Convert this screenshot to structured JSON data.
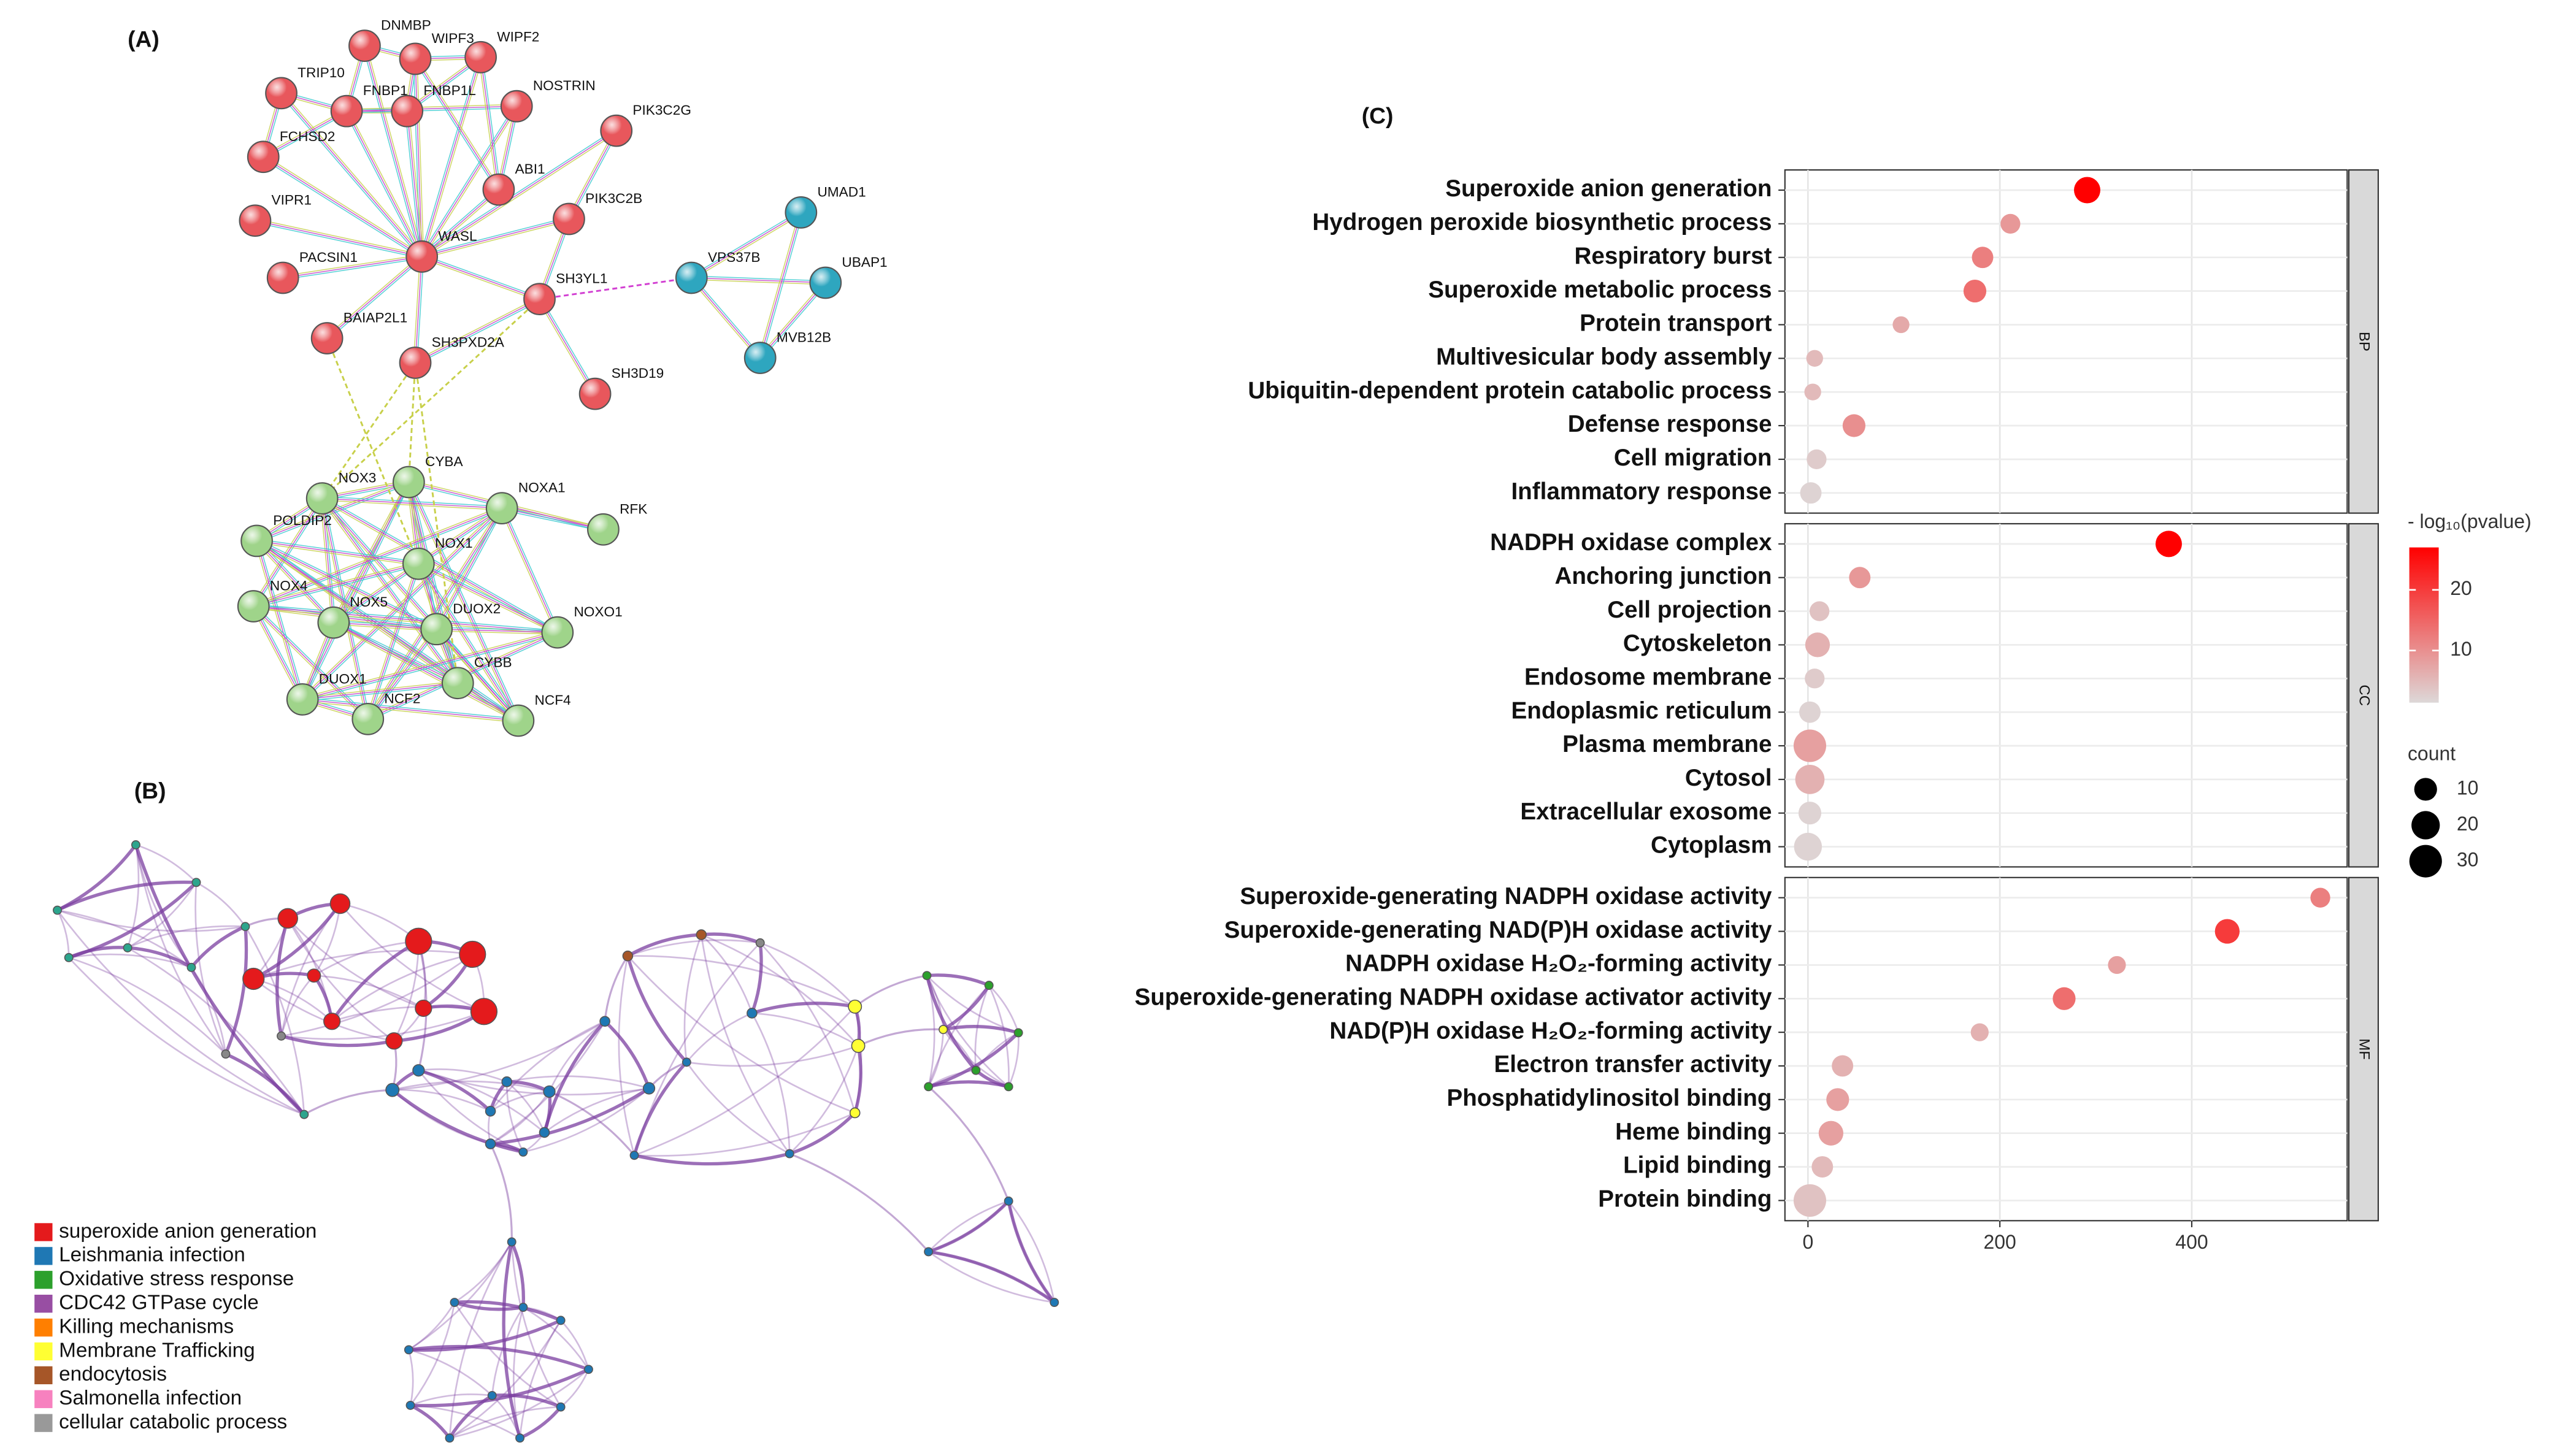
{
  "panel_labels": {
    "a": "(A)",
    "b": "(B)",
    "c": "(C)"
  },
  "network": {
    "nodes": [
      {
        "label": "DNMBP",
        "color": "#e8575c"
      },
      {
        "label": "WIPF3",
        "color": "#e8575c"
      },
      {
        "label": "WIPF2",
        "color": "#e8575c"
      },
      {
        "label": "TRIP10",
        "color": "#e8575c"
      },
      {
        "label": "FNBP1",
        "color": "#e8575c"
      },
      {
        "label": "FNBP1L",
        "color": "#e8575c"
      },
      {
        "label": "NOSTRIN",
        "color": "#e8575c"
      },
      {
        "label": "PIK3C2G",
        "color": "#e8575c"
      },
      {
        "label": "FCHSD2",
        "color": "#e8575c"
      },
      {
        "label": "ABI1",
        "color": "#e8575c"
      },
      {
        "label": "PIK3C2B",
        "color": "#e8575c"
      },
      {
        "label": "VIPR1",
        "color": "#e8575c"
      },
      {
        "label": "WASL",
        "color": "#e8575c"
      },
      {
        "label": "PACSIN1",
        "color": "#e8575c"
      },
      {
        "label": "SH3YL1",
        "color": "#e8575c"
      },
      {
        "label": "BAIAP2L1",
        "color": "#e8575c"
      },
      {
        "label": "SH3PXD2A",
        "color": "#e8575c"
      },
      {
        "label": "SH3D19",
        "color": "#e8575c"
      },
      {
        "label": "UMAD1",
        "color": "#2ea6bf"
      },
      {
        "label": "VPS37B",
        "color": "#2ea6bf"
      },
      {
        "label": "UBAP1",
        "color": "#2ea6bf"
      },
      {
        "label": "MVB12B",
        "color": "#2ea6bf"
      },
      {
        "label": "CYBA",
        "color": "#9fd48a"
      },
      {
        "label": "NOX3",
        "color": "#9fd48a"
      },
      {
        "label": "NOXA1",
        "color": "#9fd48a"
      },
      {
        "label": "RFK",
        "color": "#9fd48a"
      },
      {
        "label": "POLDIP2",
        "color": "#9fd48a"
      },
      {
        "label": "NOX1",
        "color": "#9fd48a"
      },
      {
        "label": "NOX4",
        "color": "#9fd48a"
      },
      {
        "label": "NOX5",
        "color": "#9fd48a"
      },
      {
        "label": "DUOX2",
        "color": "#9fd48a"
      },
      {
        "label": "NOXO1",
        "color": "#9fd48a"
      },
      {
        "label": "CYBB",
        "color": "#9fd48a"
      },
      {
        "label": "DUOX1",
        "color": "#9fd48a"
      },
      {
        "label": "NCF2",
        "color": "#9fd48a"
      },
      {
        "label": "NCF4",
        "color": "#9fd48a"
      }
    ]
  },
  "enrichment_network": {
    "legend": [
      {
        "label": "superoxide anion generation",
        "color": "#e41a1c"
      },
      {
        "label": "Leishmania infection",
        "color": "#1f78b4"
      },
      {
        "label": "Oxidative stress response",
        "color": "#2ca02c"
      },
      {
        "label": "CDC42 GTPase cycle",
        "color": "#984ea3"
      },
      {
        "label": "Killing mechanisms",
        "color": "#ff7f00"
      },
      {
        "label": "Membrane Trafficking",
        "color": "#ffff33"
      },
      {
        "label": "endocytosis",
        "color": "#a65628"
      },
      {
        "label": "Salmonella infection",
        "color": "#f781bf"
      },
      {
        "label": "cellular catabolic process",
        "color": "#999999"
      }
    ]
  },
  "chart_data": {
    "type": "dot",
    "series": [
      {
        "name": "BP",
        "categories": [
          "Superoxide anion generation",
          "Hydrogen peroxide biosynthetic process",
          "Respiratory burst",
          "Superoxide metabolic process",
          "Protein transport",
          "Multivesicular body assembly",
          "Ubiquitin-dependent protein catabolic process",
          "Defense response",
          "Cell migration",
          "Inflammatory response"
        ],
        "values": [
          291,
          211,
          182,
          174,
          97,
          7,
          5,
          48,
          9,
          3
        ],
        "sizes": [
          16,
          6,
          8,
          10,
          3,
          3,
          3,
          10,
          6,
          8
        ],
        "color_values": [
          27,
          9,
          12,
          14,
          7,
          5,
          5,
          10,
          3,
          2
        ]
      },
      {
        "name": "CC",
        "categories": [
          "NADPH oxidase complex",
          "Anchoring junction",
          "Cell projection",
          "Cytoskeleton",
          "Endosome membrane",
          "Endoplasmic reticulum",
          "Plasma membrane",
          "Cytosol",
          "Extracellular exosome",
          "Cytoplasm"
        ],
        "values": [
          376,
          54,
          12,
          10,
          7,
          2,
          2,
          2,
          2,
          0
        ],
        "sizes": [
          16,
          8,
          6,
          13,
          6,
          8,
          30,
          22,
          10,
          19
        ],
        "color_values": [
          27,
          9,
          4,
          6,
          3,
          2,
          8,
          6,
          2,
          2
        ]
      },
      {
        "name": "MF",
        "categories": [
          "Superoxide-generating NADPH oxidase activity",
          "Superoxide-generating NAD(P)H oxidase activity",
          "NADPH oxidase H₂O₂-forming activity",
          "Superoxide-generating NADPH oxidase activator activity",
          "NAD(P)H oxidase H₂O₂-forming activity",
          "Electron transfer activity",
          "Phosphatidylinositol binding",
          "Heme binding",
          "Lipid binding",
          "Protein binding"
        ],
        "values": [
          534,
          437,
          322,
          267,
          179,
          36,
          31,
          24,
          15,
          2
        ],
        "sizes": [
          6,
          13,
          4,
          10,
          4,
          8,
          10,
          13,
          8,
          30
        ],
        "color_values": [
          12,
          20,
          8,
          14,
          6,
          6,
          8,
          8,
          5,
          4
        ]
      }
    ],
    "xlim": [
      -24,
      562
    ],
    "xticks": [
      0,
      200,
      400
    ],
    "grid": true,
    "color_scale": {
      "title": "- log₁₀(pvalue)",
      "lim": [
        1.4,
        27
      ],
      "ticks": [
        10,
        20
      ],
      "colors": [
        "#ddd8d8",
        "#ff0000"
      ]
    },
    "size_legend": {
      "title": "count",
      "values": [
        10,
        20,
        30
      ],
      "color": "#000000"
    }
  }
}
